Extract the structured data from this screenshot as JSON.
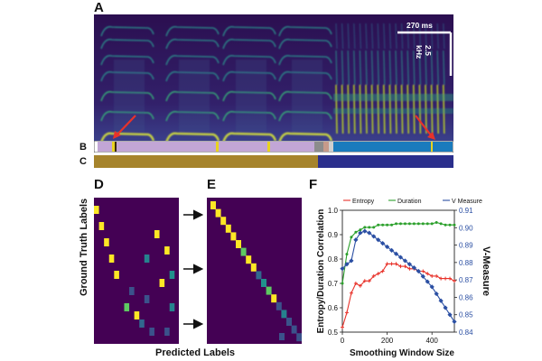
{
  "panels": {
    "a": "A",
    "b": "B",
    "c": "C",
    "d": "D",
    "e": "E",
    "f": "F"
  },
  "scale": {
    "time": "270 ms",
    "freq": "2.5 kHz"
  },
  "matrix_labels": {
    "ylabel": "Ground Truth Labels",
    "xlabel": "Predicted Labels"
  },
  "colors": {
    "bar_c_left": "#a6842c",
    "bar_c_right": "#2b2f8c",
    "bar_b_purple": "#c2a6d6",
    "bar_b_blue": "#1a7bbd",
    "arrow": "#e8322a",
    "viridis_dark": "#440154"
  },
  "chart_data": {
    "type": "line",
    "xlabel": "Smoothing Window Size",
    "ylabel": "Entropy/Duration Correlation",
    "ylabel_right": "V-Measure",
    "xlim": [
      0,
      500
    ],
    "ylim": [
      0.5,
      1.0
    ],
    "ylim_right": [
      0.84,
      0.91
    ],
    "xticks": [
      0,
      200,
      400
    ],
    "yticks": [
      0.5,
      0.6,
      0.7,
      0.8,
      0.9,
      1.0
    ],
    "yticks_right": [
      0.84,
      0.85,
      0.86,
      0.87,
      0.88,
      0.89,
      0.9,
      0.91
    ],
    "legend_position": "top",
    "series": [
      {
        "name": "Entropy",
        "axis": "left",
        "color": "#e8322a",
        "marker": "plus",
        "x": [
          0,
          20,
          40,
          60,
          80,
          100,
          120,
          140,
          160,
          180,
          200,
          220,
          240,
          260,
          280,
          300,
          320,
          340,
          360,
          380,
          400,
          420,
          440,
          460,
          480,
          500
        ],
        "y": [
          0.52,
          0.58,
          0.66,
          0.7,
          0.69,
          0.71,
          0.71,
          0.73,
          0.74,
          0.75,
          0.78,
          0.78,
          0.78,
          0.77,
          0.77,
          0.76,
          0.76,
          0.75,
          0.75,
          0.74,
          0.73,
          0.73,
          0.72,
          0.72,
          0.72,
          0.71
        ]
      },
      {
        "name": "Duration",
        "axis": "left",
        "color": "#2ca02c",
        "marker": "dot",
        "x": [
          0,
          20,
          40,
          60,
          80,
          100,
          120,
          140,
          160,
          180,
          200,
          220,
          240,
          260,
          280,
          300,
          320,
          340,
          360,
          380,
          400,
          420,
          440,
          460,
          480,
          500
        ],
        "y": [
          0.7,
          0.82,
          0.89,
          0.91,
          0.92,
          0.93,
          0.93,
          0.93,
          0.94,
          0.94,
          0.94,
          0.94,
          0.945,
          0.945,
          0.945,
          0.945,
          0.945,
          0.945,
          0.945,
          0.945,
          0.945,
          0.95,
          0.945,
          0.94,
          0.94,
          0.94
        ]
      },
      {
        "name": "V Measure",
        "axis": "right",
        "color": "#2b4fa3",
        "marker": "diamond",
        "x": [
          0,
          20,
          40,
          60,
          80,
          100,
          120,
          140,
          160,
          180,
          200,
          220,
          240,
          260,
          280,
          300,
          320,
          340,
          360,
          380,
          400,
          420,
          440,
          460,
          480,
          500
        ],
        "y": [
          0.8765,
          0.879,
          0.881,
          0.893,
          0.897,
          0.898,
          0.897,
          0.895,
          0.893,
          0.891,
          0.889,
          0.887,
          0.885,
          0.883,
          0.881,
          0.879,
          0.877,
          0.875,
          0.872,
          0.869,
          0.866,
          0.862,
          0.858,
          0.854,
          0.85,
          0.846
        ]
      }
    ]
  }
}
